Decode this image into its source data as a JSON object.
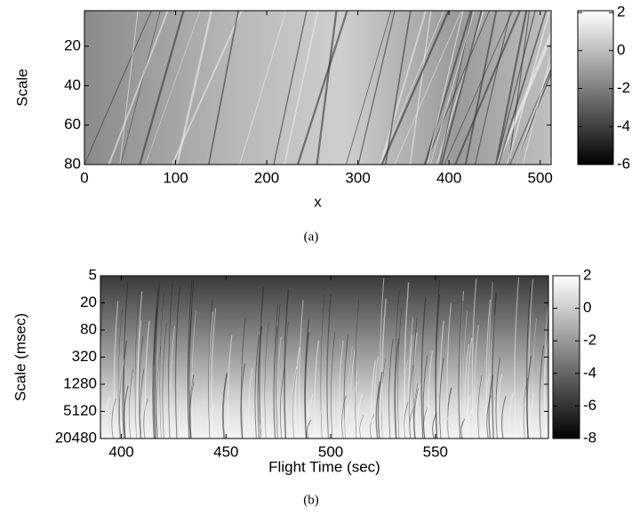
{
  "chart_data": [
    {
      "type": "heatmap",
      "xlabel": "x",
      "ylabel": "Scale",
      "caption": "(a)",
      "xlim": [
        0,
        512
      ],
      "xticks": [
        0,
        100,
        200,
        300,
        400,
        500
      ],
      "ylim": [
        2,
        80
      ],
      "yticks": [
        20,
        40,
        60,
        80
      ],
      "yscale": "linear",
      "yreversed": true,
      "clim": [
        -6,
        2.1
      ],
      "cticks": [
        -6,
        -4,
        -2,
        0,
        2
      ]
    },
    {
      "type": "heatmap",
      "xlabel": "Flight Time (sec)",
      "ylabel": "Scale (msec)",
      "caption": "(b)",
      "xlim": [
        390,
        604
      ],
      "xticks": [
        400,
        450,
        500,
        550
      ],
      "ylim": [
        5,
        20480
      ],
      "yticks": [
        5,
        20,
        80,
        320,
        1280,
        5120,
        20480
      ],
      "yscale": "log",
      "yreversed": true,
      "clim": [
        -8,
        2
      ],
      "cticks": [
        -8,
        -6,
        -4,
        -2,
        0,
        2
      ]
    }
  ]
}
